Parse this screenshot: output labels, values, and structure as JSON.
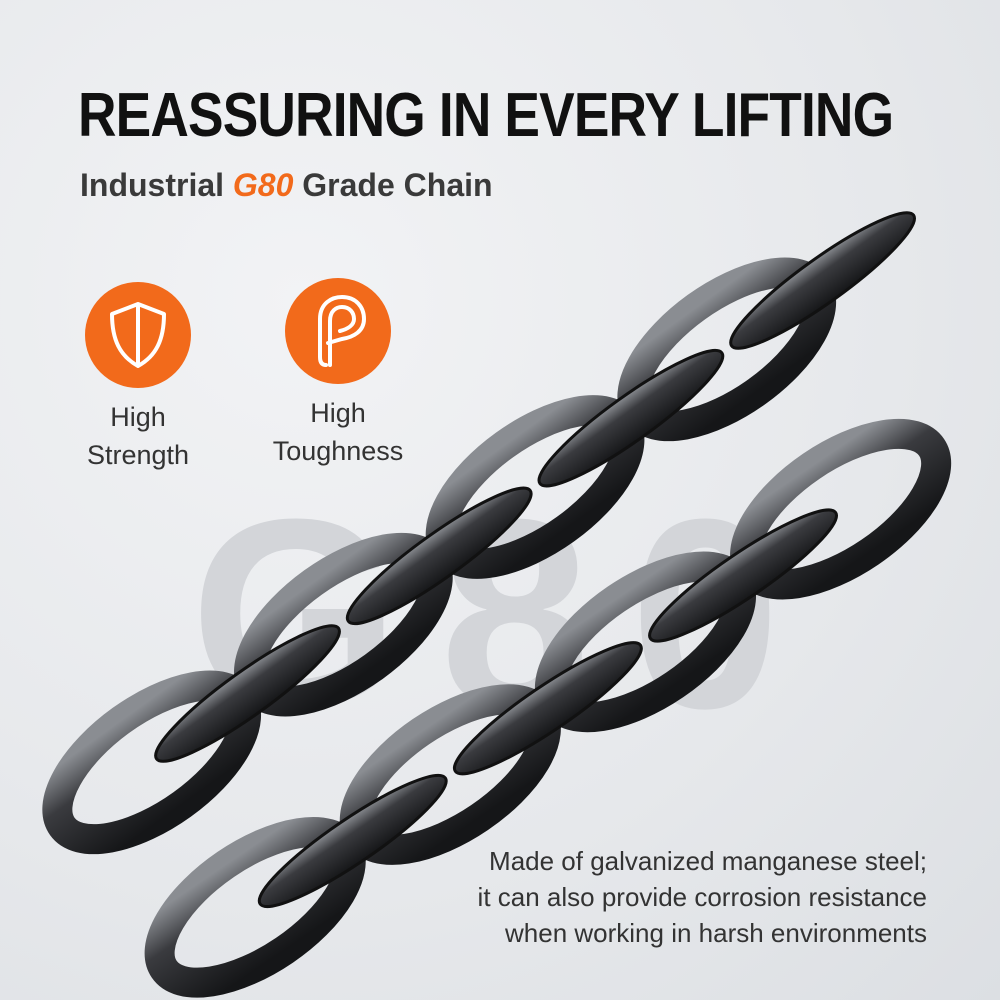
{
  "header": {
    "title": "REASSURING IN EVERY LIFTING",
    "subtitle_prefix": "Industrial",
    "subtitle_accent": "G80",
    "subtitle_suffix": "Grade Chain"
  },
  "watermark": "G80",
  "features": [
    {
      "icon": "shield-icon",
      "line1": "High",
      "line2": "Strength"
    },
    {
      "icon": "toughness-p-icon",
      "line1": "High",
      "line2": "Toughness"
    }
  ],
  "description": [
    "Made of galvanized manganese steel;",
    "it can also provide corrosion resistance",
    "when working in harsh environments"
  ],
  "colors": {
    "accent": "#f26a1b",
    "chain": "#2a2b2e",
    "text": "#111111"
  }
}
